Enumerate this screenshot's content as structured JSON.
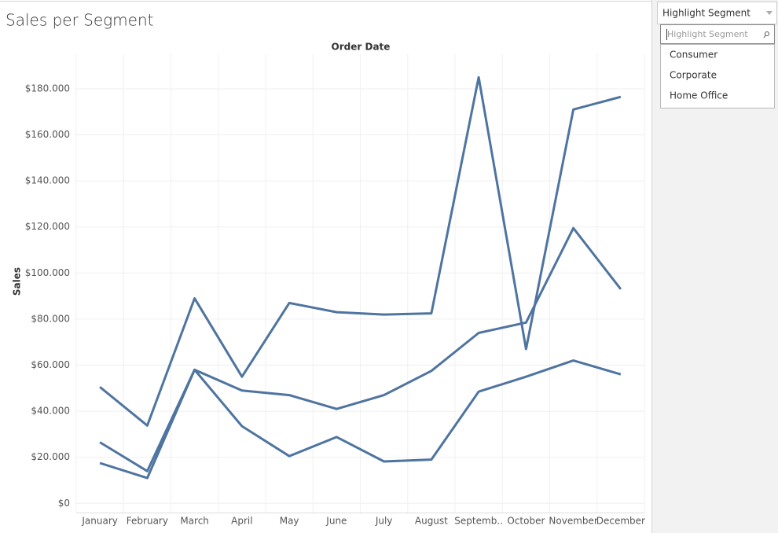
{
  "chart_data": {
    "type": "line",
    "title": "Sales per Segment",
    "x_label": "Order Date",
    "y_label": "Sales",
    "categories": [
      "January",
      "February",
      "March",
      "April",
      "May",
      "June",
      "July",
      "August",
      "Septemb..",
      "October",
      "November",
      "December"
    ],
    "series": [
      {
        "name": "Consumer",
        "color": "#4e74a0",
        "values": [
          50500,
          33800,
          89000,
          55000,
          87000,
          83000,
          82000,
          82500,
          185000,
          67000,
          171000,
          176500
        ]
      },
      {
        "name": "Corporate",
        "color": "#4e74a0",
        "values": [
          26500,
          14000,
          58000,
          49000,
          47000,
          41000,
          47000,
          57500,
          74000,
          78500,
          119500,
          93000
        ]
      },
      {
        "name": "Home Office",
        "color": "#4e74a0",
        "values": [
          17500,
          11000,
          58000,
          33500,
          20500,
          28800,
          18200,
          19000,
          48500,
          55000,
          62000,
          56000
        ]
      }
    ],
    "ylim": [
      -4000,
      195000
    ],
    "yticks": [
      {
        "value": 0,
        "label": "$0"
      },
      {
        "value": 20000,
        "label": "$20.000"
      },
      {
        "value": 40000,
        "label": "$40.000"
      },
      {
        "value": 60000,
        "label": "$60.000"
      },
      {
        "value": 80000,
        "label": "$80.000"
      },
      {
        "value": 100000,
        "label": "$100.000"
      },
      {
        "value": 120000,
        "label": "$120.000"
      },
      {
        "value": 140000,
        "label": "$140.000"
      },
      {
        "value": 160000,
        "label": "$160.000"
      },
      {
        "value": 180000,
        "label": "$180.000"
      }
    ],
    "grid": true
  },
  "highlight": {
    "title": "Highlight Segment",
    "placeholder": "Highlight Segment"
  }
}
